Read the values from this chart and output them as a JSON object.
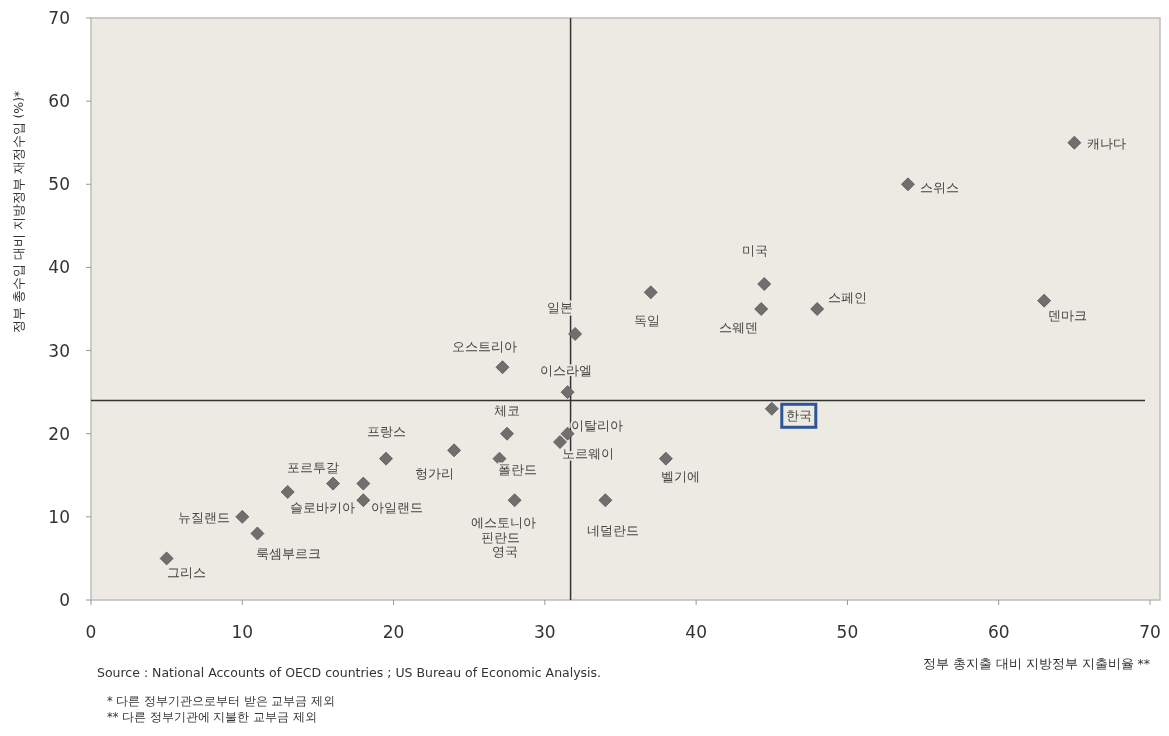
{
  "chart_data": {
    "type": "scatter",
    "xlabel": "정부 총지출 대비 지방정부 지출비율 **",
    "ylabel": "정부 총수입 대비 지방정부 재정수입 (%)*",
    "x": [
      5,
      10,
      11,
      13,
      16,
      18,
      18,
      19.5,
      24,
      27.5,
      27,
      28,
      27.2,
      31,
      31.5,
      31.5,
      32,
      37,
      38,
      34,
      44.5,
      44.3,
      48,
      45,
      54,
      63,
      65
    ],
    "values": [
      5,
      10,
      8,
      13,
      14,
      12,
      14,
      17,
      18,
      20,
      17,
      12,
      28,
      19,
      20,
      25,
      32,
      37,
      17,
      12,
      38,
      35,
      35,
      23,
      50,
      36,
      55
    ],
    "color": "#6f6f6f",
    "marker": "diamond",
    "grid": false,
    "xlim": [
      0,
      70
    ],
    "ylim": [
      0,
      70
    ],
    "xticks": [
      0,
      10,
      20,
      30,
      40,
      50,
      60,
      70
    ],
    "yticks": [
      0,
      10,
      20,
      30,
      40,
      50,
      60,
      70
    ],
    "ref_lines": [
      {
        "axis": "x",
        "value": 31.7,
        "color": "#333333"
      },
      {
        "axis": "y",
        "value": 24,
        "color": "#333333"
      }
    ],
    "annotations": [
      {
        "text": "그리스",
        "x": 5,
        "y": 5
      },
      {
        "text": "뉴질랜드",
        "x": 10,
        "y": 10
      },
      {
        "text": "룩셈부르크",
        "x": 11,
        "y": 8
      },
      {
        "text": "포르투갈",
        "x": 13,
        "y": 13
      },
      {
        "text": "슬로바키아",
        "x": 16,
        "y": 14
      },
      {
        "text": "아일랜드",
        "x": 18,
        "y": 12
      },
      {
        "text": "프랑스",
        "x": 19.5,
        "y": 17
      },
      {
        "text": "헝가리",
        "x": 24,
        "y": 18
      },
      {
        "text": "체코",
        "x": 27.5,
        "y": 20
      },
      {
        "text": "폴란드",
        "x": 27,
        "y": 17
      },
      {
        "text": "에스토니아",
        "x": 28,
        "y": 12
      },
      {
        "text": "오스트리아",
        "x": 27.2,
        "y": 28
      },
      {
        "text": "노르웨이",
        "x": 31,
        "y": 19
      },
      {
        "text": "이탈리아",
        "x": 31.5,
        "y": 20
      },
      {
        "text": "이스라엘",
        "x": 31.5,
        "y": 25
      },
      {
        "text": "일본",
        "x": 32,
        "y": 32
      },
      {
        "text": "독일",
        "x": 37,
        "y": 37
      },
      {
        "text": "벨기에",
        "x": 38,
        "y": 17
      },
      {
        "text": "네덜란드",
        "x": 34,
        "y": 12
      },
      {
        "text": "미국",
        "x": 44.5,
        "y": 38
      },
      {
        "text": "스웨덴",
        "x": 44.3,
        "y": 35
      },
      {
        "text": "스페인",
        "x": 48,
        "y": 35
      },
      {
        "text": "한국",
        "x": 45,
        "y": 23
      },
      {
        "text": "스위스",
        "x": 54,
        "y": 50
      },
      {
        "text": "덴마크",
        "x": 63,
        "y": 36
      },
      {
        "text": "캐나다",
        "x": 65,
        "y": 55
      },
      "핀란드",
      "영국",
      "Source : National Accounts of OECD countries ; US Bureau of Economic Analysis.",
      "* 다른 정부기관으로부터  받은 교부금 제외",
      "** 다른 정부기관에 지불한 교부금 제외"
    ]
  }
}
